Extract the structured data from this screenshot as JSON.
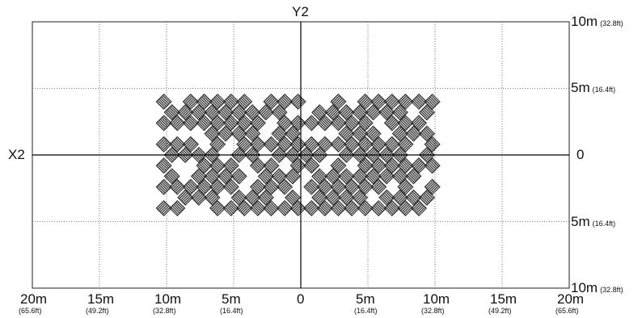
{
  "axes": {
    "y_axis_label": "Y2",
    "x_axis_label": "X2",
    "x_ticks": [
      {
        "main": "20m",
        "sub": "(65.6ft)"
      },
      {
        "main": "15m",
        "sub": "(49.2ft)"
      },
      {
        "main": "10m",
        "sub": "(32.8ft)"
      },
      {
        "main": "5m",
        "sub": "(16.4ft)"
      },
      {
        "main": "0",
        "sub": ""
      },
      {
        "main": "5m",
        "sub": "(16.4ft)"
      },
      {
        "main": "10m",
        "sub": "(32.8ft)"
      },
      {
        "main": "15m",
        "sub": "(49.2ft)"
      },
      {
        "main": "20m",
        "sub": "(65.6ft)"
      }
    ],
    "y_ticks": [
      {
        "main": "10m",
        "sub": "(32.8ft)"
      },
      {
        "main": "5m",
        "sub": "(16.4ft)"
      },
      {
        "main": "0",
        "sub": ""
      },
      {
        "main": "5m",
        "sub": "(16.4ft)"
      },
      {
        "main": "10m",
        "sub": "(32.8ft)"
      }
    ],
    "x_range_m": [
      -20,
      20
    ],
    "y_range_m": [
      -10,
      10
    ],
    "grid_step_m": 5,
    "grid_style": "dotted"
  },
  "pattern": {
    "description_hidden": true,
    "x_range_m": [
      -10,
      10
    ],
    "y_range_m": [
      -4,
      4
    ],
    "columns": 21,
    "rows": 11,
    "color": "#333333"
  }
}
